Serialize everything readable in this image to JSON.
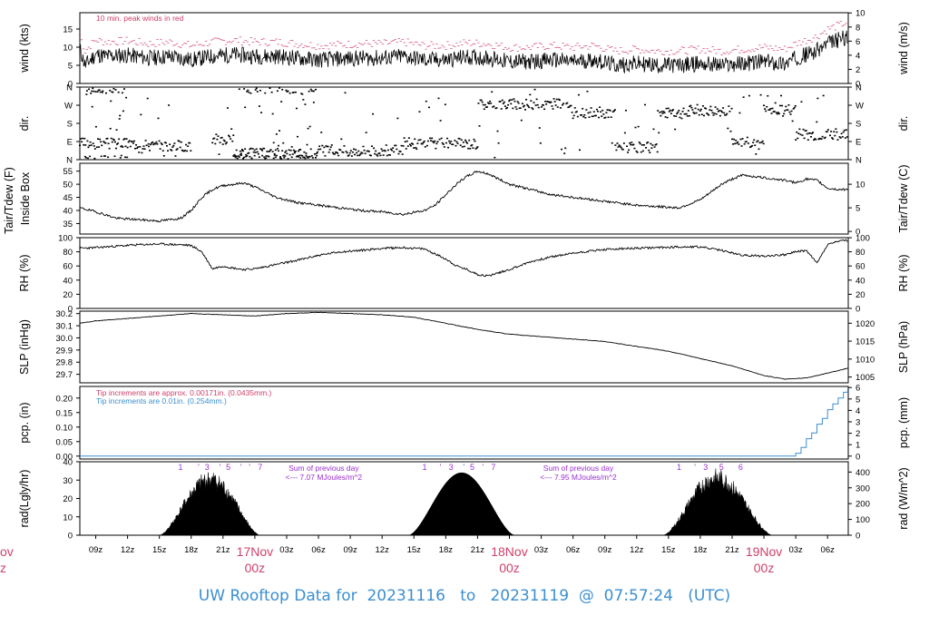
{
  "footer": {
    "prefix": "UW Rooftop Data for",
    "start": "20231116",
    "to": "to",
    "end": "20231119",
    "at": "@",
    "time": "07:57:24",
    "tz": "(UTC)"
  },
  "time_axis": {
    "start_hour_utc": 7.5,
    "end_hour_utc": 79.95,
    "tick_labels": [
      "09z",
      "12z",
      "15z",
      "18z",
      "21z",
      "03z",
      "06z",
      "09z",
      "12z",
      "15z",
      "18z",
      "21z",
      "03z",
      "06z",
      "09z",
      "12z",
      "15z",
      "18z",
      "21z",
      "03z",
      "06z"
    ],
    "tick_hours": [
      9,
      12,
      15,
      18,
      21,
      27,
      30,
      33,
      36,
      39,
      42,
      45,
      51,
      54,
      57,
      60,
      63,
      66,
      69,
      75,
      78
    ],
    "day_labels": [
      {
        "hour": 24,
        "date": "17Nov",
        "time": "00z"
      },
      {
        "hour": 48,
        "date": "18Nov",
        "time": "00z"
      },
      {
        "hour": 72,
        "date": "19Nov",
        "time": "00z"
      }
    ],
    "clipped_left": {
      "date": "ov",
      "time": "z"
    }
  },
  "colors": {
    "axis": "#000000",
    "red": "#d0406a",
    "blue": "#3b8fd0",
    "purple": "#9a30d0",
    "text": "#000000"
  },
  "chart_data": [
    {
      "type": "line",
      "panel": "wind",
      "ylabel": "wind (kts)",
      "ylabel_right": "wind (m/s)",
      "ylim": [
        0,
        19.5
      ],
      "yticks": [
        0,
        5,
        10,
        15
      ],
      "yticks_right": [
        0,
        2,
        4,
        6,
        8,
        10
      ],
      "annotation": "10 min. peak winds in red",
      "series": [
        {
          "hours": [
            7.5,
            8,
            9,
            10,
            12,
            14,
            16,
            18,
            20,
            22,
            24,
            26,
            28,
            30,
            32,
            34,
            36,
            38,
            40,
            42,
            44,
            46,
            48,
            50,
            52,
            54,
            56,
            58,
            60,
            62,
            64,
            66,
            68,
            70,
            72,
            74,
            75,
            76,
            77,
            78,
            79,
            79.9
          ],
          "values": [
            9.5,
            5,
            8,
            7.5,
            7.8,
            7,
            7.5,
            6.5,
            7.5,
            8,
            7.5,
            7.5,
            7,
            6.5,
            6.8,
            7,
            7,
            7.5,
            6.5,
            6.5,
            7.3,
            7,
            6,
            6,
            6.5,
            6,
            6.5,
            5,
            5.5,
            5,
            5,
            5.5,
            5,
            5.5,
            6,
            5.5,
            7,
            8,
            9,
            11,
            12,
            13
          ]
        }
      ],
      "peak_offset": 3.5
    },
    {
      "type": "scatter",
      "panel": "direction",
      "ylabel": "dir.",
      "ylabel_right": "dir.",
      "yticks_labels": [
        "N",
        "E",
        "S",
        "W",
        "N"
      ],
      "ylim": [
        0,
        360
      ],
      "clusters": [
        {
          "h0": 7.5,
          "h1": 14,
          "deg": 80
        },
        {
          "h0": 14,
          "h1": 18,
          "deg": 70
        },
        {
          "h0": 20,
          "h1": 22,
          "deg": 100
        },
        {
          "h0": 8,
          "h1": 12,
          "deg": 355
        },
        {
          "h0": 22,
          "h1": 30,
          "deg": 30
        },
        {
          "h0": 22,
          "h1": 30,
          "deg": 355
        },
        {
          "h0": 30,
          "h1": 38,
          "deg": 45
        },
        {
          "h0": 38,
          "h1": 45,
          "deg": 80
        },
        {
          "h0": 45,
          "h1": 54,
          "deg": 275
        },
        {
          "h0": 54,
          "h1": 58,
          "deg": 230
        },
        {
          "h0": 58,
          "h1": 62,
          "deg": 60
        },
        {
          "h0": 62,
          "h1": 65,
          "deg": 230
        },
        {
          "h0": 65,
          "h1": 69,
          "deg": 245
        },
        {
          "h0": 69,
          "h1": 72,
          "deg": 80
        },
        {
          "h0": 72,
          "h1": 75,
          "deg": 250
        },
        {
          "h0": 75,
          "h1": 79.9,
          "deg": 125
        }
      ]
    },
    {
      "type": "line",
      "panel": "temperature",
      "ylabel": "Tair/Tdew (F)",
      "ylabel2": "Inside Box",
      "ylabel_right": "Tair/Tdew (C)",
      "ylim": [
        31,
        58
      ],
      "yticks": [
        35,
        40,
        45,
        50,
        55
      ],
      "yticks_right": [
        0,
        5,
        10
      ],
      "series": [
        {
          "hours": [
            7.5,
            9,
            11,
            13,
            15,
            17,
            18,
            19,
            20,
            21,
            22,
            23,
            24,
            26,
            28,
            30,
            32,
            34,
            36,
            38,
            40,
            41,
            42,
            43,
            44,
            45,
            46,
            48,
            50,
            52,
            54,
            56,
            58,
            60,
            62,
            64,
            66,
            67,
            68,
            69,
            70,
            71,
            72,
            73,
            74,
            75,
            76,
            77,
            78,
            79,
            79.9
          ],
          "values": [
            41,
            39.5,
            37,
            36.5,
            36,
            37,
            40,
            45,
            48,
            49.5,
            50,
            50.5,
            49,
            45,
            43,
            42,
            41,
            40,
            39.5,
            38.5,
            40,
            42,
            46,
            50,
            53,
            55,
            54,
            50,
            48,
            46,
            45,
            44,
            43,
            42,
            41.5,
            41,
            44,
            47,
            50,
            52,
            53.5,
            53,
            52.5,
            52,
            51.5,
            50.5,
            52,
            51.5,
            48.5,
            48,
            48
          ]
        }
      ]
    },
    {
      "type": "line",
      "panel": "humidity",
      "ylabel": "RH (%)",
      "ylabel_right": "RH (%)",
      "ylim": [
        0,
        100
      ],
      "yticks": [
        0,
        20,
        40,
        60,
        80,
        100
      ],
      "series": [
        {
          "hours": [
            7.5,
            9,
            11,
            13,
            15,
            17,
            18,
            19,
            20,
            21,
            22,
            23,
            24,
            26,
            28,
            30,
            32,
            34,
            36,
            38,
            40,
            42,
            43,
            44,
            45,
            46,
            48,
            50,
            52,
            54,
            56,
            58,
            60,
            62,
            64,
            66,
            68,
            70,
            72,
            74,
            75,
            76,
            77,
            78,
            79,
            79.9
          ],
          "values": [
            85,
            86,
            88,
            90,
            91,
            90,
            89,
            80,
            56,
            60,
            57,
            55,
            56,
            62,
            68,
            75,
            80,
            82,
            85,
            86,
            84,
            70,
            60,
            55,
            48,
            46,
            55,
            66,
            73,
            78,
            82,
            84,
            85,
            86,
            87,
            87,
            82,
            75,
            74,
            76,
            80,
            82,
            64,
            90,
            95,
            96
          ]
        }
      ]
    },
    {
      "type": "line",
      "panel": "pressure",
      "ylabel": "SLP (inHg)",
      "ylabel_right": "SLP (hPa)",
      "ylim": [
        29.63,
        30.22
      ],
      "yticks": [
        29.7,
        29.8,
        29.9,
        30.0,
        30.1,
        30.2
      ],
      "yticks_right": [
        1005,
        1010,
        1015,
        1020
      ],
      "series": [
        {
          "hours": [
            7.5,
            9,
            12,
            15,
            18,
            21,
            24,
            27,
            30,
            33,
            36,
            39,
            42,
            45,
            48,
            51,
            54,
            57,
            60,
            63,
            66,
            69,
            72,
            74,
            76,
            78,
            79.9
          ],
          "values": [
            30.12,
            30.14,
            30.16,
            30.18,
            30.2,
            30.19,
            30.18,
            30.2,
            30.21,
            30.2,
            30.19,
            30.17,
            30.12,
            30.07,
            30.03,
            30.01,
            29.99,
            29.97,
            29.93,
            29.89,
            29.83,
            29.77,
            29.69,
            29.66,
            29.67,
            29.71,
            29.75
          ]
        }
      ]
    },
    {
      "type": "line",
      "panel": "precipitation",
      "ylabel": "pcp. (in)",
      "ylabel_right": "pcp. (mm)",
      "ylim": [
        -0.01,
        0.24
      ],
      "yticks": [
        0.0,
        0.05,
        0.1,
        0.15,
        0.2
      ],
      "yticks_right": [
        0,
        1,
        2,
        3,
        4,
        5,
        6
      ],
      "annotations": [
        {
          "text": "Tip increments are approx. 0.00171in. (0.0435mm.)",
          "color": "red"
        },
        {
          "text": "Tip increments are 0.01in. (0.254mm.)",
          "color": "blue"
        }
      ],
      "series": [
        {
          "name": "",
          "hours": [
            7.5,
            74.5,
            75,
            75.5,
            76,
            76.5,
            77,
            77.5,
            78,
            78.5,
            79,
            79.5,
            79.9
          ],
          "values": [
            0,
            0,
            0.01,
            0.03,
            0.06,
            0.08,
            0.11,
            0.13,
            0.16,
            0.18,
            0.2,
            0.22,
            0.23
          ]
        }
      ]
    },
    {
      "type": "area",
      "panel": "radiation",
      "ylabel": "rad(Lgly/hr)",
      "ylabel_right": "rad (W/m^2)",
      "ylim": [
        0,
        40
      ],
      "yticks": [
        0,
        10,
        20,
        30,
        40
      ],
      "yticks_right": [
        0,
        100,
        200,
        300,
        400
      ],
      "days": [
        {
          "rise": 15,
          "set": 24.5,
          "peak": 34,
          "peak_hour": 19.8,
          "noisy": true
        },
        {
          "rise": 38.5,
          "set": 48.5,
          "peak": 34,
          "peak_hour": 43.5,
          "noisy": false
        },
        {
          "rise": 62.5,
          "set": 72.8,
          "peak": 35,
          "peak_hour": 67.5,
          "noisy": true
        }
      ],
      "sums": [
        {
          "hour": 30.5,
          "line1": "Sum of previous day",
          "line2": "<--- 7.07 MJoules/m^2"
        },
        {
          "hour": 54.5,
          "line1": "Sum of previous day",
          "line2": "<--- 7.95 MJoules/m^2"
        }
      ],
      "hour_marks": [
        {
          "hour": 17,
          "text": "1"
        },
        {
          "hour": 18.7,
          "text": "'"
        },
        {
          "hour": 19.5,
          "text": "3"
        },
        {
          "hour": 20.7,
          "text": "'"
        },
        {
          "hour": 21.5,
          "text": "5"
        },
        {
          "hour": 22.7,
          "text": "'"
        },
        {
          "hour": 23.5,
          "text": "'"
        },
        {
          "hour": 24.5,
          "text": "7"
        },
        {
          "hour": 40,
          "text": "1"
        },
        {
          "hour": 41.5,
          "text": "'"
        },
        {
          "hour": 42.5,
          "text": "3"
        },
        {
          "hour": 43.7,
          "text": "'"
        },
        {
          "hour": 44.5,
          "text": "5"
        },
        {
          "hour": 45.5,
          "text": "'"
        },
        {
          "hour": 46.5,
          "text": "7"
        },
        {
          "hour": 64,
          "text": "1"
        },
        {
          "hour": 65.5,
          "text": "'"
        },
        {
          "hour": 66.5,
          "text": "3"
        },
        {
          "hour": 68,
          "text": "5"
        },
        {
          "hour": 69.8,
          "text": "6"
        }
      ]
    }
  ]
}
